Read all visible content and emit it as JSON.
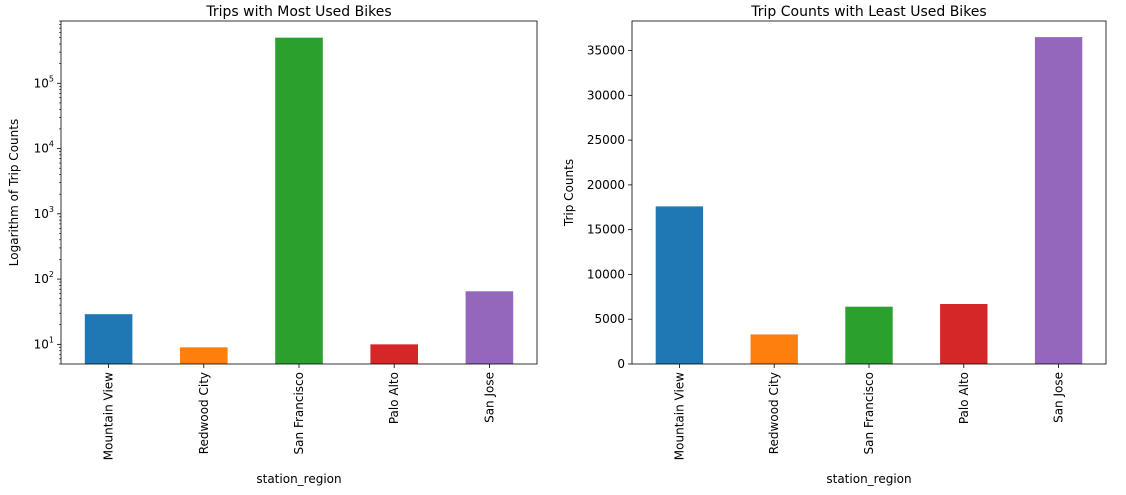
{
  "chart_data": [
    {
      "type": "bar",
      "title": "Trips with Most Used Bikes",
      "xlabel": "station_region",
      "ylabel": "Logarithm of Trip Counts",
      "yscale": "log",
      "ylim": [
        5,
        900000
      ],
      "yticks": [
        10,
        100,
        1000,
        10000,
        100000
      ],
      "ytick_labels": [
        {
          "base": "10",
          "exp": "1"
        },
        {
          "base": "10",
          "exp": "2"
        },
        {
          "base": "10",
          "exp": "3"
        },
        {
          "base": "10",
          "exp": "4"
        },
        {
          "base": "10",
          "exp": "5"
        }
      ],
      "categories": [
        "Mountain View",
        "Redwood City",
        "San Francisco",
        "Palo Alto",
        "San Jose"
      ],
      "values": [
        29,
        9,
        500000,
        10,
        65
      ],
      "colors": [
        "#1f77b4",
        "#ff7f0e",
        "#2ca02c",
        "#d62728",
        "#9467bd"
      ],
      "grid": false,
      "legend": false
    },
    {
      "type": "bar",
      "title": "Trip Counts with Least Used Bikes",
      "xlabel": "station_region",
      "ylabel": "Trip Counts",
      "yscale": "linear",
      "ylim": [
        0,
        38300
      ],
      "yticks": [
        0,
        5000,
        10000,
        15000,
        20000,
        25000,
        30000,
        35000
      ],
      "ytick_labels": [
        "0",
        "5000",
        "10000",
        "15000",
        "20000",
        "25000",
        "30000",
        "35000"
      ],
      "categories": [
        "Mountain View",
        "Redwood City",
        "San Francisco",
        "Palo Alto",
        "San Jose"
      ],
      "values": [
        17600,
        3300,
        6400,
        6700,
        36500
      ],
      "colors": [
        "#1f77b4",
        "#ff7f0e",
        "#2ca02c",
        "#d62728",
        "#9467bd"
      ],
      "grid": false,
      "legend": false
    }
  ]
}
